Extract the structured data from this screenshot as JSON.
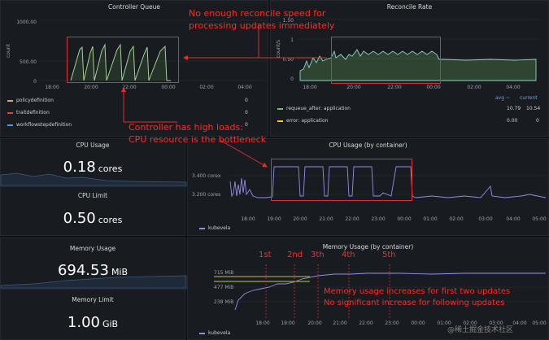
{
  "panels": {
    "controller_queue": {
      "title": "Controller Queue",
      "y_ticks": [
        "1000.00",
        "500.00",
        "0"
      ],
      "y_label": "count",
      "x_ticks": [
        "18:00",
        "20:00",
        "22:00",
        "00:00",
        "02:00",
        "04:00"
      ],
      "legend": [
        {
          "name": "policydefinition",
          "value": "0",
          "color": "#f2a33c"
        },
        {
          "name": "traitdefinition",
          "value": "0",
          "color": "#e0442f"
        },
        {
          "name": "workflowstepdefinition",
          "value": "0",
          "color": "#5794f2"
        }
      ]
    },
    "reconcile_rate": {
      "title": "Reconcile Rate",
      "y_ticks": [
        "1.50",
        "1",
        "0.50",
        "0"
      ],
      "y_label": "count/s",
      "x_ticks": [
        "18:00",
        "20:00",
        "22:00",
        "00:00",
        "02:00",
        "04:00"
      ],
      "legend_headers": {
        "avg": "avg ~",
        "current": "current"
      },
      "legend": [
        {
          "name": "requeue_after: application",
          "avg": "10.79",
          "current": "10.54",
          "color": "#73bf69"
        },
        {
          "name": "error: application",
          "avg": "0.00",
          "current": "0",
          "color": "#f2cc0c"
        }
      ]
    },
    "cpu_usage": {
      "title": "CPU Usage",
      "value": "0.18",
      "unit": "cores"
    },
    "cpu_limit": {
      "title": "CPU Limit",
      "value": "0.50",
      "unit": "cores"
    },
    "cpu_by_container": {
      "title": "CPU Usage (by container)",
      "y_ticks": [
        "3.400 corex",
        "3.200 cores"
      ],
      "x_ticks": [
        "18:00",
        "19:00",
        "20:00",
        "21:00",
        "22:00",
        "23:00",
        "00:00",
        "01:00",
        "02:00",
        "03:00",
        "04:00",
        "05:00"
      ],
      "legend": [
        {
          "name": "kubevela",
          "color": "#8f8fe8"
        }
      ]
    },
    "memory_usage": {
      "title": "Memory Usage",
      "value": "694.53",
      "unit": "MiB"
    },
    "memory_limit": {
      "title": "Memory Limit",
      "value": "1.00",
      "unit": "GiB"
    },
    "memory_by_container": {
      "title": "Memory Usage (by container)",
      "y_ticks": [
        "715 MiB",
        "477 MiB",
        "238 MiB"
      ],
      "x_ticks": [
        "18:00",
        "19:00",
        "20:00",
        "21:00",
        "22:00",
        "23:00",
        "00:00",
        "01:00",
        "02:00",
        "03:00",
        "04:00",
        "05:00"
      ],
      "legend": [
        {
          "name": "kubevela",
          "color": "#8f8fe8"
        }
      ]
    }
  },
  "annotations": {
    "queue_note": [
      "No enough reconcile speed for",
      "processing updates immediately"
    ],
    "cpu_note": [
      "Controller has high loads:",
      "CPU resource is the bottleneck"
    ],
    "memory_note": [
      "Memory usage increases for first two updates",
      "No significant increase for following updates"
    ],
    "update_markers": [
      "1st",
      "2nd",
      "3th",
      "4th",
      "5th"
    ]
  },
  "watermark": "@稀土掘金技术社区"
}
